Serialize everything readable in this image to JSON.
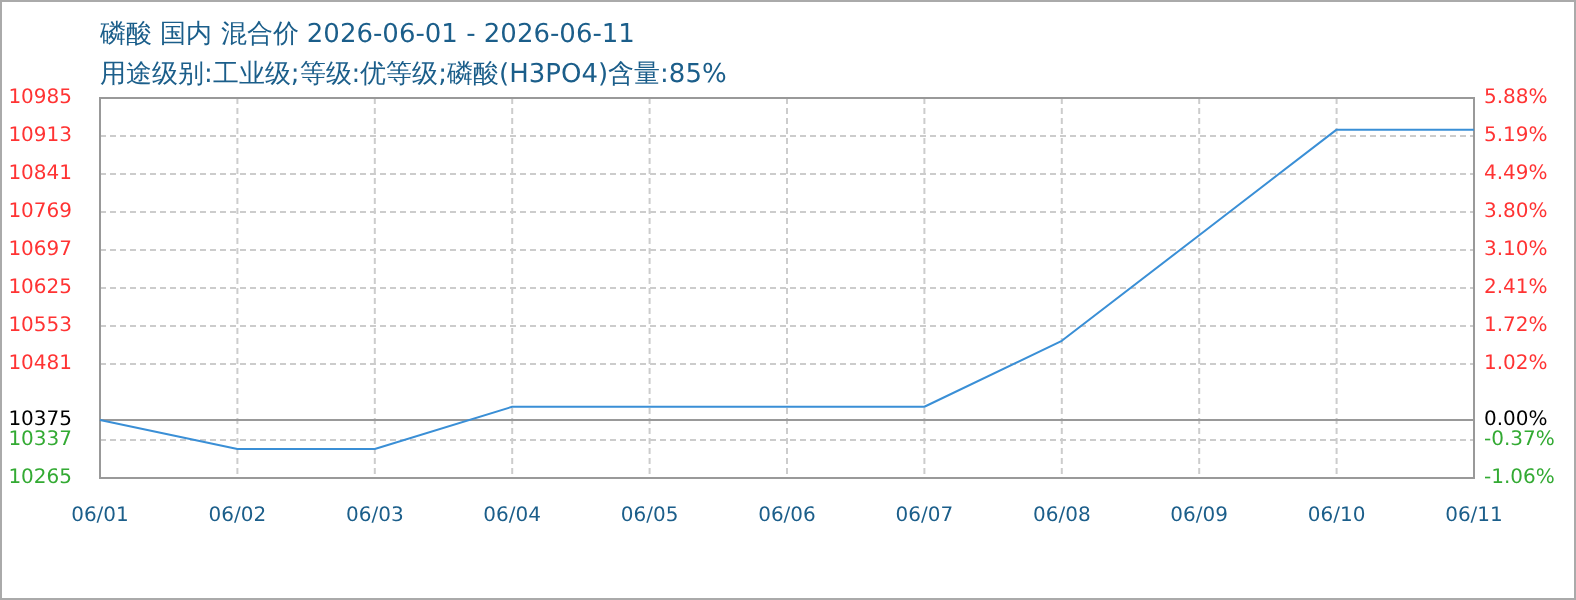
{
  "chart_data": {
    "type": "line",
    "title": "磷酸 国内 混合价 2026-06-01 - 2026-06-11",
    "subtitle": "用途级别:工业级;等级:优等级;磷酸(H3PO4)含量:85%",
    "categories": [
      "06/01",
      "06/02",
      "06/03",
      "06/04",
      "06/05",
      "06/06",
      "06/07",
      "06/08",
      "06/09",
      "06/10",
      "06/11"
    ],
    "series": [
      {
        "color": "#3a8fd6",
        "values": [
          10375,
          10320,
          10320,
          10400,
          10400,
          10400,
          10400,
          10525,
          10725,
          10925,
          10925
        ]
      }
    ],
    "ylim": [
      10265,
      10985
    ],
    "yticks": [
      10265,
      10337,
      10375,
      10481,
      10553,
      10625,
      10697,
      10769,
      10841,
      10913,
      10985
    ],
    "y2lim": [
      -1.06,
      5.88
    ],
    "y2ticks": [
      {
        "value": -1.06,
        "label": "-1.06%"
      },
      {
        "value": -0.37,
        "label": "-0.37%"
      },
      {
        "value": 0,
        "label": "0.00%"
      },
      {
        "value": 1.02,
        "label": "1.02%"
      },
      {
        "value": 1.72,
        "label": "1.72%"
      },
      {
        "value": 2.41,
        "label": "2.41%"
      },
      {
        "value": 3.1,
        "label": "3.10%"
      },
      {
        "value": 3.8,
        "label": "3.80%"
      },
      {
        "value": 4.49,
        "label": "4.49%"
      },
      {
        "value": 5.19,
        "label": "5.19%"
      },
      {
        "value": 5.88,
        "label": "5.88%"
      }
    ],
    "ref_lines": [
      {
        "axis": "y",
        "value": 10375,
        "color": "#999999"
      }
    ],
    "grid": true,
    "marker": "none",
    "line_style": "solid"
  }
}
